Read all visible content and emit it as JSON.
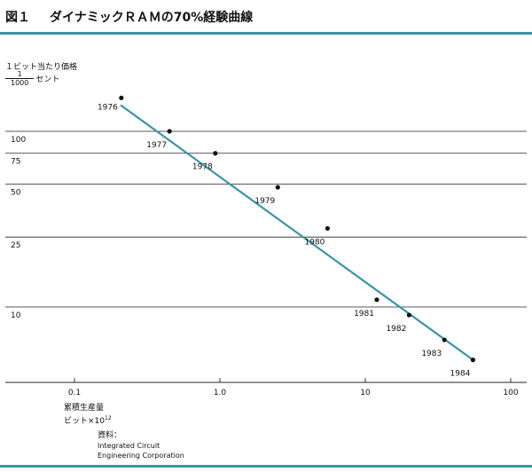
{
  "figure": {
    "label": "図１",
    "title": "ダイナミックＲＡＭの70%経験曲線"
  },
  "y_axis": {
    "label": "１ビット当たり価格",
    "unit_numerator": "1",
    "unit_denominator": "1000",
    "unit_text": "セント"
  },
  "x_axis": {
    "label_line1": "累積生産量",
    "label_line2_base": "ビット×10",
    "label_line2_exponent": "12"
  },
  "source": {
    "title": "資料：",
    "line1": "Integrated Circuit",
    "line2": "Engineering Corporation"
  },
  "colors": {
    "accent": "#3a94a6",
    "gridline": "#222222",
    "points": "#111111"
  },
  "chart_data": {
    "type": "scatter",
    "x_scale": "log",
    "y_scale": "log",
    "xlim": [
      0.06,
      100
    ],
    "ylim": [
      4,
      200
    ],
    "x_ticks": [
      {
        "value": 0.1,
        "label": "0.1"
      },
      {
        "value": 1,
        "label": "1.0"
      },
      {
        "value": 10,
        "label": "10"
      },
      {
        "value": 100,
        "label": "100"
      }
    ],
    "y_ticks": [
      {
        "value": 100,
        "label": "100"
      },
      {
        "value": 75,
        "label": "75"
      },
      {
        "value": 50,
        "label": "50"
      },
      {
        "value": 25,
        "label": "25"
      },
      {
        "value": 10,
        "label": "10"
      }
    ],
    "grid": true,
    "points": [
      {
        "label": "1976",
        "x": 0.21,
        "y": 155
      },
      {
        "label": "1977",
        "x": 0.45,
        "y": 100
      },
      {
        "label": "1978",
        "x": 0.93,
        "y": 75
      },
      {
        "label": "1979",
        "x": 2.5,
        "y": 48
      },
      {
        "label": "1980",
        "x": 5.5,
        "y": 28
      },
      {
        "label": "1981",
        "x": 12,
        "y": 11
      },
      {
        "label": "1982",
        "x": 20,
        "y": 9
      },
      {
        "label": "1983",
        "x": 35,
        "y": 6.5
      },
      {
        "label": "1984",
        "x": 55,
        "y": 5
      }
    ],
    "trend_line": [
      {
        "x": 0.21,
        "y": 140
      },
      {
        "x": 55,
        "y": 5
      }
    ]
  }
}
